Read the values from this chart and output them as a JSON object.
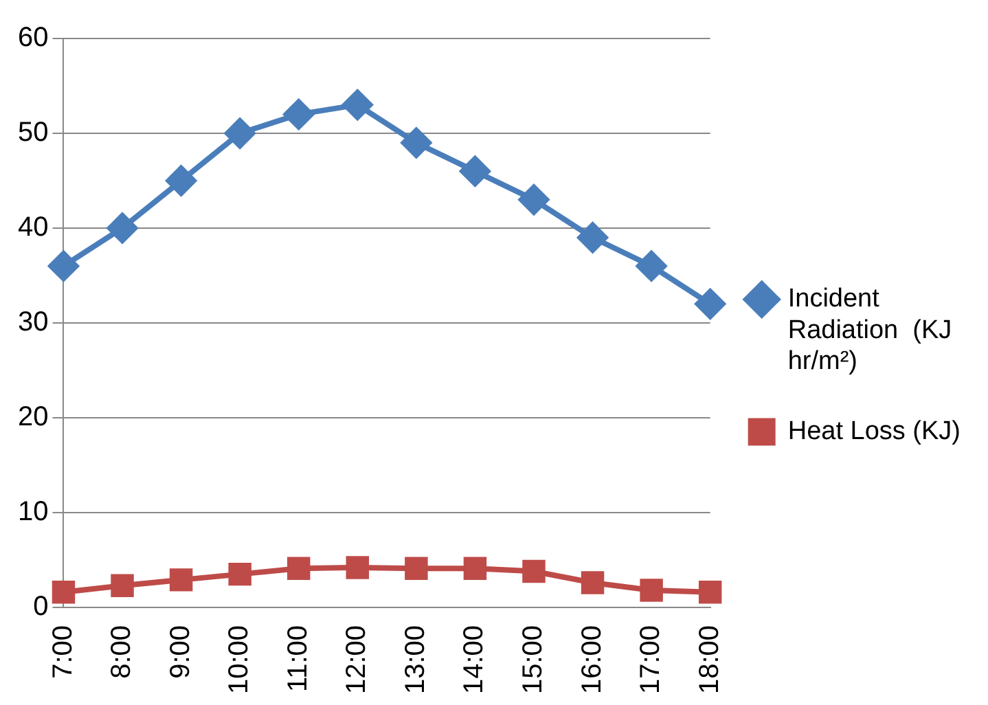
{
  "chart_data": {
    "type": "line",
    "categories": [
      "7:00",
      "8:00",
      "9:00",
      "10:00",
      "11:00",
      "12:00",
      "13:00",
      "14:00",
      "15:00",
      "16:00",
      "17:00",
      "18:00"
    ],
    "series": [
      {
        "name": "Incident Radiation  (KJ hr/m²)",
        "color": "#4a7ebb",
        "marker": "diamond",
        "values": [
          36,
          40,
          45,
          50,
          52,
          53,
          49,
          46,
          43,
          39,
          36,
          32
        ]
      },
      {
        "name": "Heat Loss (KJ)",
        "color": "#be4b48",
        "marker": "square",
        "values": [
          1.6,
          2.3,
          2.9,
          3.5,
          4.1,
          4.2,
          4.1,
          4.1,
          3.8,
          2.6,
          1.8,
          1.6
        ]
      }
    ],
    "ylim": [
      0,
      60
    ],
    "yticks": [
      0,
      10,
      20,
      30,
      40,
      50,
      60
    ],
    "grid": "y",
    "legend": "right"
  }
}
